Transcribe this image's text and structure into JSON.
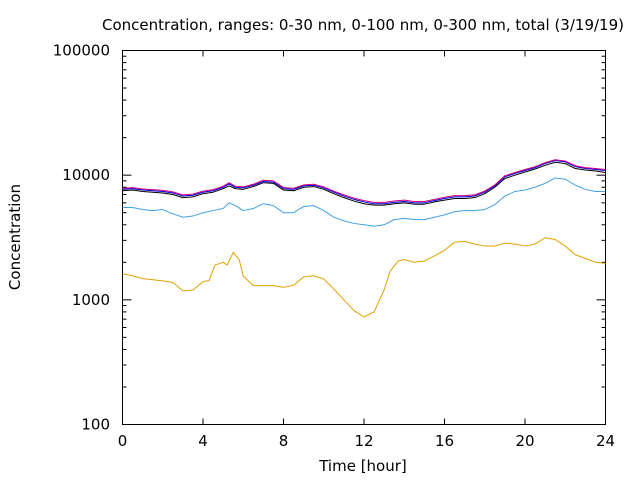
{
  "chart_data": {
    "type": "line",
    "title": "Concentration, ranges: 0-30 nm, 0-100 nm, 0-300 nm, total (3/19/19)",
    "xlabel": "Time [hour]",
    "ylabel": "Concentration",
    "xlim": [
      0,
      24
    ],
    "ylim": [
      100,
      100000
    ],
    "yscale": "log",
    "grid": false,
    "legend": "none",
    "x_ticks": [
      0,
      4,
      8,
      12,
      16,
      20,
      24
    ],
    "x_tick_labels": [
      "0",
      "4",
      "8",
      "12",
      "16",
      "20",
      "24"
    ],
    "y_ticks": [
      100,
      1000,
      10000,
      100000
    ],
    "y_tick_labels": [
      "100",
      "1000",
      "10000",
      "100000"
    ],
    "series": [
      {
        "color": "#e0a000",
        "x": [
          0,
          0.5,
          1,
          1.5,
          2,
          2.5,
          3,
          3.5,
          4,
          4.3,
          4.6,
          5,
          5.2,
          5.5,
          5.8,
          6,
          6.5,
          7,
          7.5,
          8,
          8.5,
          9,
          9.5,
          10,
          10.5,
          11,
          11.5,
          12,
          12.5,
          13,
          13.3,
          13.7,
          14,
          14.5,
          15,
          15.5,
          16,
          16.5,
          17,
          17.5,
          18,
          18.5,
          19,
          19.5,
          20,
          20.5,
          21,
          21.5,
          22,
          22.5,
          23,
          23.5,
          24
        ],
        "y": [
          1620,
          1560,
          1480,
          1450,
          1420,
          1380,
          1180,
          1200,
          1400,
          1430,
          1900,
          2000,
          1900,
          2400,
          2100,
          1550,
          1300,
          1300,
          1300,
          1260,
          1310,
          1530,
          1560,
          1470,
          1220,
          1000,
          820,
          730,
          800,
          1200,
          1700,
          2050,
          2100,
          2000,
          2050,
          2250,
          2500,
          2900,
          2950,
          2800,
          2700,
          2700,
          2850,
          2800,
          2700,
          2800,
          3150,
          3050,
          2700,
          2300,
          2150,
          2000,
          1960
        ]
      },
      {
        "color": "#40a0e0",
        "x": [
          0,
          0.5,
          1,
          1.5,
          2,
          2.5,
          3,
          3.5,
          4,
          4.5,
          5,
          5.3,
          5.6,
          6,
          6.5,
          7,
          7.5,
          8,
          8.5,
          9,
          9.5,
          10,
          10.5,
          11,
          11.5,
          12,
          12.5,
          13,
          13.5,
          14,
          14.5,
          15,
          15.5,
          16,
          16.5,
          17,
          17.5,
          18,
          18.5,
          19,
          19.5,
          20,
          20.5,
          21,
          21.5,
          22,
          22.5,
          23,
          23.5,
          24
        ],
        "y": [
          5500,
          5500,
          5300,
          5200,
          5300,
          4900,
          4600,
          4700,
          5000,
          5200,
          5400,
          6000,
          5700,
          5200,
          5400,
          5900,
          5700,
          5000,
          5000,
          5600,
          5700,
          5200,
          4600,
          4300,
          4100,
          4000,
          3900,
          4000,
          4400,
          4500,
          4400,
          4400,
          4600,
          4800,
          5100,
          5200,
          5200,
          5300,
          5800,
          6800,
          7400,
          7600,
          8000,
          8600,
          9500,
          9300,
          8300,
          7700,
          7400,
          7400
        ]
      },
      {
        "color": "#000000",
        "x": [
          0,
          0.5,
          1,
          1.5,
          2,
          2.5,
          3,
          3.5,
          4,
          4.5,
          5,
          5.3,
          5.6,
          6,
          6.5,
          7,
          7.5,
          8,
          8.5,
          9,
          9.5,
          10,
          10.5,
          11,
          11.5,
          12,
          12.5,
          13,
          13.5,
          14,
          14.5,
          15,
          15.5,
          16,
          16.5,
          17,
          17.5,
          18,
          18.5,
          19,
          19.5,
          20,
          20.5,
          21,
          21.5,
          22,
          22.5,
          23,
          23.5,
          24
        ],
        "y": [
          7500,
          7600,
          7400,
          7300,
          7200,
          7000,
          6600,
          6700,
          7100,
          7300,
          7800,
          8200,
          7800,
          7700,
          8100,
          8700,
          8600,
          7600,
          7500,
          8000,
          8100,
          7700,
          7100,
          6600,
          6200,
          5900,
          5750,
          5750,
          5900,
          6000,
          5850,
          5850,
          6100,
          6300,
          6500,
          6500,
          6600,
          7100,
          8000,
          9400,
          10000,
          10600,
          11200,
          12000,
          12700,
          12400,
          11300,
          11000,
          10800,
          10500
        ]
      },
      {
        "color": "#0000e0",
        "x": [
          0,
          0.5,
          1,
          1.5,
          2,
          2.5,
          3,
          3.5,
          4,
          4.5,
          5,
          5.3,
          5.6,
          6,
          6.5,
          7,
          7.5,
          8,
          8.5,
          9,
          9.5,
          10,
          10.5,
          11,
          11.5,
          12,
          12.5,
          13,
          13.5,
          14,
          14.5,
          15,
          15.5,
          16,
          16.5,
          17,
          17.5,
          18,
          18.5,
          19,
          19.5,
          20,
          20.5,
          21,
          21.5,
          22,
          22.5,
          23,
          23.5,
          24
        ],
        "y": [
          7700,
          7800,
          7600,
          7500,
          7400,
          7200,
          6800,
          6900,
          7300,
          7500,
          8000,
          8500,
          8000,
          7900,
          8300,
          8900,
          8800,
          7800,
          7700,
          8200,
          8300,
          7900,
          7300,
          6800,
          6400,
          6100,
          5900,
          5900,
          6050,
          6150,
          6000,
          6000,
          6250,
          6500,
          6700,
          6700,
          6800,
          7300,
          8200,
          9700,
          10300,
          10900,
          11500,
          12400,
          13100,
          12800,
          11700,
          11300,
          11100,
          10900
        ]
      },
      {
        "color": "#d00080",
        "x": [
          0,
          0.5,
          1,
          1.5,
          2,
          2.5,
          3,
          3.5,
          4,
          4.5,
          5,
          5.3,
          5.6,
          6,
          6.5,
          7,
          7.5,
          8,
          8.5,
          9,
          9.5,
          10,
          10.5,
          11,
          11.5,
          12,
          12.5,
          13,
          13.5,
          14,
          14.5,
          15,
          15.5,
          16,
          16.5,
          17,
          17.5,
          18,
          18.5,
          19,
          19.5,
          20,
          20.5,
          21,
          21.5,
          22,
          22.5,
          23,
          23.5,
          24
        ],
        "y": [
          7850,
          7950,
          7750,
          7650,
          7550,
          7350,
          6950,
          7050,
          7450,
          7650,
          8150,
          8700,
          8150,
          8050,
          8450,
          9100,
          9000,
          7950,
          7850,
          8350,
          8450,
          8050,
          7450,
          6950,
          6550,
          6250,
          6050,
          6050,
          6200,
          6300,
          6150,
          6150,
          6400,
          6650,
          6850,
          6850,
          6950,
          7450,
          8350,
          9900,
          10500,
          11100,
          11700,
          12600,
          13300,
          13000,
          11900,
          11500,
          11300,
          11100
        ]
      }
    ]
  }
}
